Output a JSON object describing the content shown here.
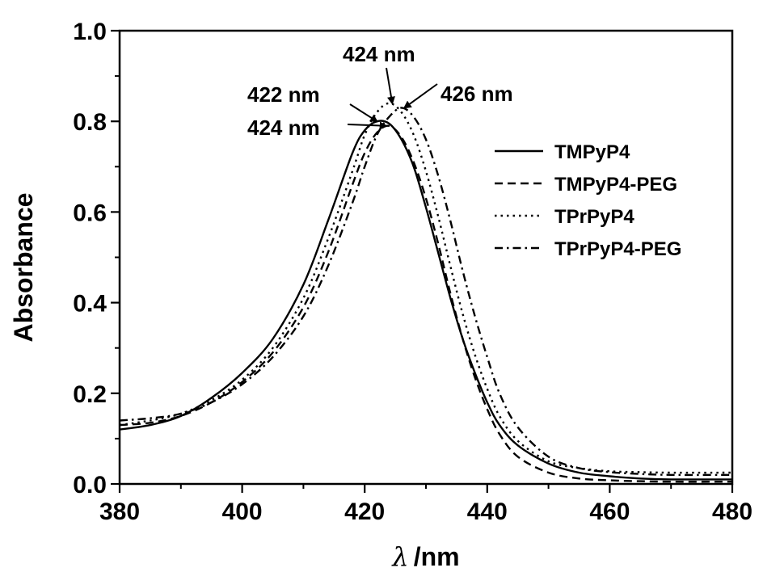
{
  "chart_data": {
    "type": "line",
    "title": "",
    "xlabel_symbol": "λ",
    "xlabel_unit": "/nm",
    "ylabel": "Absorbance",
    "xlim": [
      380,
      480
    ],
    "ylim": [
      0.0,
      1.0
    ],
    "x_major_ticks": [
      380,
      400,
      420,
      440,
      460,
      480
    ],
    "x_minor_step": 10,
    "y_major_ticks": [
      0.0,
      0.2,
      0.4,
      0.6,
      0.8,
      1.0
    ],
    "y_tick_labels": [
      "0.0",
      "0.2",
      "0.4",
      "0.6",
      "0.8",
      "1.0"
    ],
    "y_minor_step": 0.1,
    "grid": false,
    "legend_position": "middle-right",
    "series": [
      {
        "name": "TMPyP4",
        "style": "solid",
        "x": [
          380,
          385,
          390,
          395,
          400,
          405,
          410,
          414,
          418,
          420,
          422,
          424,
          426,
          428,
          430,
          432,
          434,
          436,
          438,
          440,
          442,
          445,
          450,
          455,
          460,
          465,
          470,
          480
        ],
        "y": [
          0.12,
          0.13,
          0.15,
          0.19,
          0.245,
          0.32,
          0.44,
          0.58,
          0.73,
          0.78,
          0.8,
          0.795,
          0.76,
          0.7,
          0.61,
          0.51,
          0.41,
          0.32,
          0.245,
          0.18,
          0.13,
          0.085,
          0.045,
          0.025,
          0.017,
          0.012,
          0.01,
          0.01
        ]
      },
      {
        "name": "TMPyP4-PEG",
        "style": "dashed",
        "x": [
          380,
          385,
          390,
          395,
          400,
          405,
          410,
          414,
          418,
          420,
          422,
          424,
          426,
          428,
          430,
          432,
          434,
          436,
          438,
          440,
          442,
          445,
          450,
          455,
          460,
          465,
          470,
          480
        ],
        "y": [
          0.13,
          0.135,
          0.15,
          0.18,
          0.225,
          0.29,
          0.39,
          0.51,
          0.66,
          0.73,
          0.775,
          0.79,
          0.765,
          0.71,
          0.63,
          0.53,
          0.42,
          0.32,
          0.235,
          0.165,
          0.11,
          0.06,
          0.025,
          0.012,
          0.008,
          0.006,
          0.005,
          0.005
        ]
      },
      {
        "name": "TPrPyP4",
        "style": "dotted",
        "x": [
          380,
          385,
          390,
          395,
          400,
          405,
          410,
          414,
          418,
          420,
          422,
          424,
          426,
          428,
          430,
          432,
          434,
          436,
          438,
          440,
          442,
          445,
          450,
          455,
          460,
          465,
          470,
          480
        ],
        "y": [
          0.13,
          0.14,
          0.155,
          0.185,
          0.23,
          0.3,
          0.41,
          0.54,
          0.69,
          0.77,
          0.82,
          0.84,
          0.82,
          0.77,
          0.69,
          0.59,
          0.48,
          0.375,
          0.285,
          0.21,
          0.15,
          0.095,
          0.05,
          0.035,
          0.028,
          0.026,
          0.025,
          0.025
        ]
      },
      {
        "name": "TPrPyP4-PEG",
        "style": "dashdot",
        "x": [
          380,
          385,
          390,
          395,
          400,
          405,
          410,
          414,
          418,
          420,
          422,
          424,
          426,
          428,
          430,
          432,
          434,
          436,
          438,
          440,
          442,
          445,
          450,
          455,
          460,
          465,
          470,
          480
        ],
        "y": [
          0.14,
          0.145,
          0.155,
          0.18,
          0.22,
          0.28,
          0.37,
          0.48,
          0.62,
          0.7,
          0.77,
          0.81,
          0.83,
          0.81,
          0.76,
          0.68,
          0.58,
          0.47,
          0.37,
          0.28,
          0.2,
          0.125,
          0.06,
          0.035,
          0.026,
          0.022,
          0.02,
          0.02
        ]
      }
    ],
    "annotations": [
      {
        "text": "422 nm",
        "target": [
          422.0,
          0.8
        ]
      },
      {
        "text": "424 nm",
        "target": [
          423.5,
          0.79
        ]
      },
      {
        "text": "424 nm",
        "target": [
          424.5,
          0.84
        ]
      },
      {
        "text": "426 nm",
        "target": [
          426.5,
          0.83
        ]
      }
    ]
  }
}
